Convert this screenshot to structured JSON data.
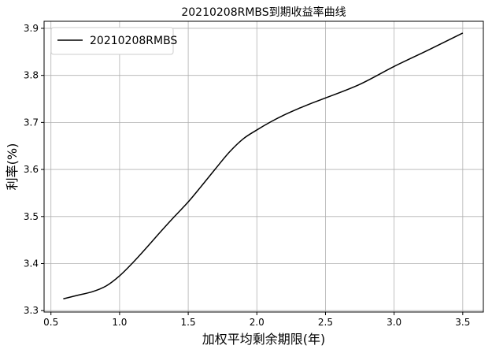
{
  "chart_data": {
    "type": "line",
    "title": "20210208RMBS到期收益率曲线",
    "xlabel": "加权平均剩余期限(年)",
    "ylabel": "利率(%)",
    "xlim": [
      0.45,
      3.65
    ],
    "ylim": [
      3.297,
      3.915
    ],
    "xticks": [
      0.5,
      1.0,
      1.5,
      2.0,
      2.5,
      3.0,
      3.5
    ],
    "xtick_labels": [
      "0.5",
      "1.0",
      "1.5",
      "2.0",
      "2.5",
      "3.0",
      "3.5"
    ],
    "yticks": [
      3.3,
      3.4,
      3.5,
      3.6,
      3.7,
      3.8,
      3.9
    ],
    "ytick_labels": [
      "3.3",
      "3.4",
      "3.5",
      "3.6",
      "3.7",
      "3.8",
      "3.9"
    ],
    "grid": true,
    "legend_position": "top-left",
    "series": [
      {
        "name": "20210208RMBS",
        "color": "#000000",
        "x": [
          0.59,
          0.7,
          0.8,
          0.9,
          1.0,
          1.1,
          1.2,
          1.3,
          1.4,
          1.5,
          1.6,
          1.7,
          1.8,
          1.9,
          2.0,
          2.1,
          2.2,
          2.3,
          2.4,
          2.5,
          2.75,
          3.0,
          3.25,
          3.5
        ],
        "y": [
          3.325,
          3.333,
          3.34,
          3.352,
          3.374,
          3.403,
          3.435,
          3.468,
          3.5,
          3.531,
          3.566,
          3.602,
          3.637,
          3.665,
          3.684,
          3.701,
          3.716,
          3.729,
          3.741,
          3.752,
          3.781,
          3.819,
          3.854,
          3.89
        ]
      }
    ]
  }
}
